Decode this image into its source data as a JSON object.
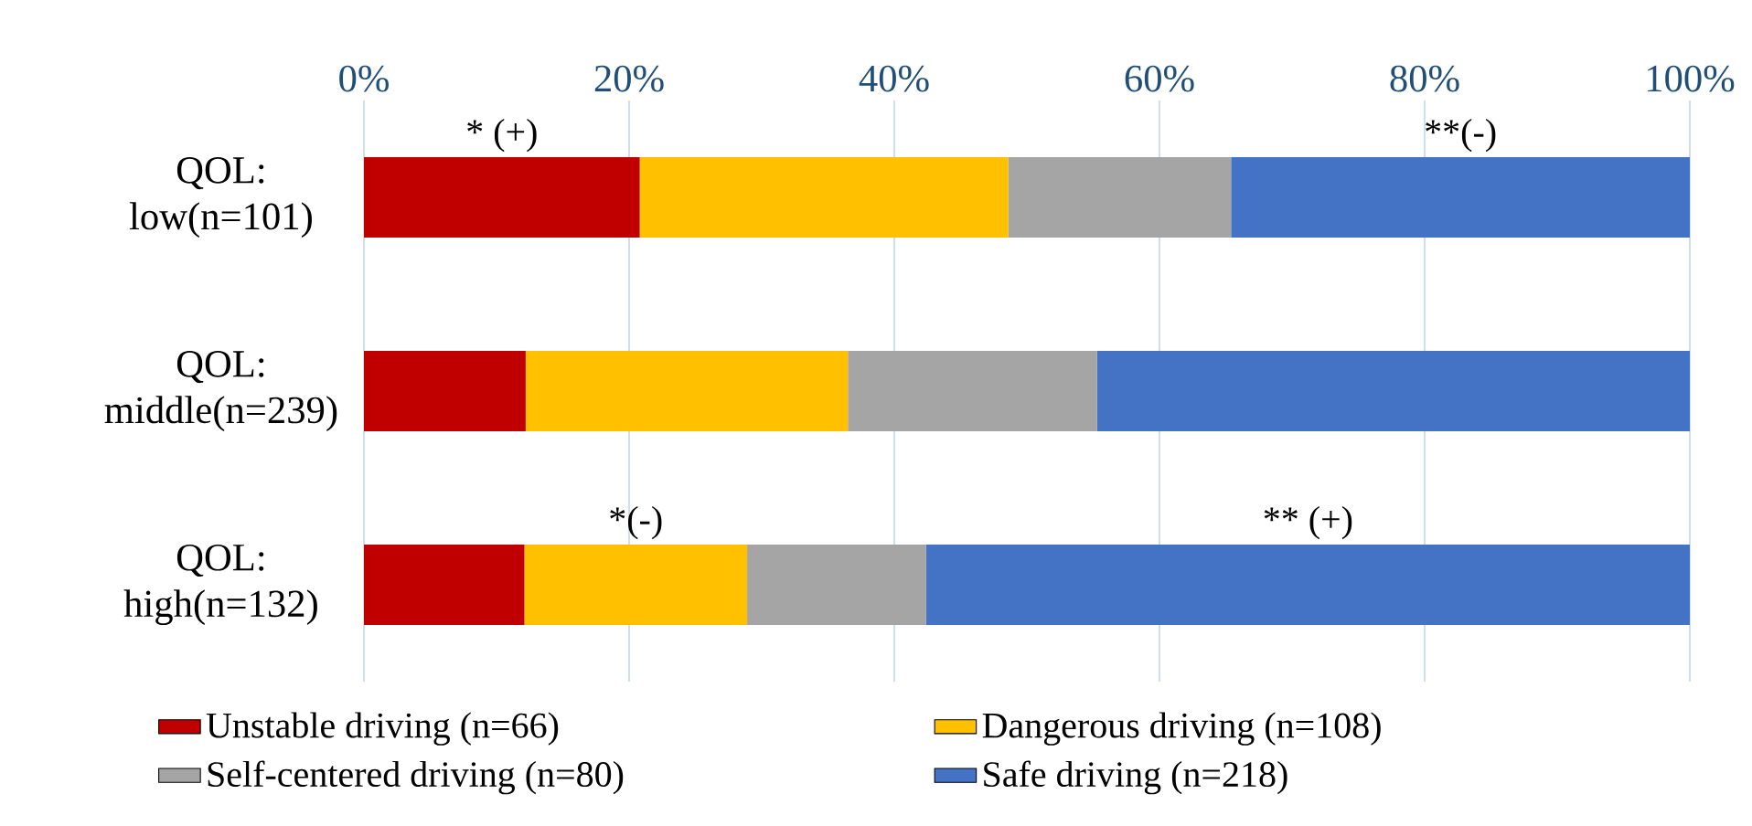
{
  "chart_data": {
    "type": "bar",
    "orientation": "horizontal",
    "stacked": true,
    "categories": [
      "QOL: low(n=101)",
      "QOL: middle(n=239)",
      "QOL: high(n=132)"
    ],
    "series": [
      {
        "name": "Unstable driving (n=66)",
        "color": "#c00000",
        "values": [
          20.8,
          12.2,
          12.1
        ]
      },
      {
        "name": "Dangerous driving (n=108)",
        "color": "#ffc000",
        "values": [
          27.8,
          24.3,
          16.8
        ]
      },
      {
        "name": "Self-centered driving (n=80)",
        "color": "#a5a5a5",
        "values": [
          16.8,
          18.8,
          13.5
        ]
      },
      {
        "name": "Safe driving (n=218)",
        "color": "#4472c4",
        "values": [
          34.6,
          44.7,
          57.6
        ]
      }
    ],
    "xlim": [
      0,
      100
    ],
    "xticks": [
      {
        "value": 0,
        "label": "0%"
      },
      {
        "value": 20,
        "label": "20%"
      },
      {
        "value": 40,
        "label": "40%"
      },
      {
        "value": 60,
        "label": "60%"
      },
      {
        "value": 80,
        "label": "80%"
      },
      {
        "value": 100,
        "label": "100%"
      }
    ],
    "grid": "x",
    "legend": "bottom",
    "annotations": [
      "* (+)",
      "**(-)",
      "*(-)",
      "** (+)"
    ]
  }
}
